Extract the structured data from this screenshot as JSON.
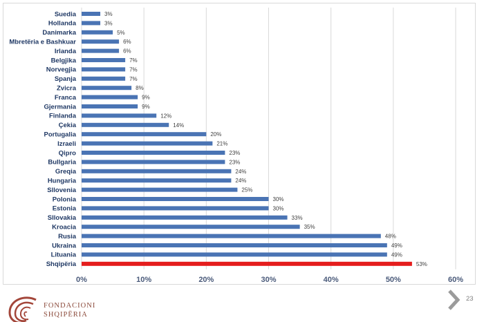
{
  "chart_data": {
    "type": "bar",
    "orientation": "horizontal",
    "categories": [
      "Suedia",
      "Hollanda",
      "Danimarka",
      "Mbretëria e Bashkuar",
      "Irlanda",
      "Belgjika",
      "Norvegjia",
      "Spanja",
      "Zvicra",
      "Franca",
      "Gjermania",
      "Finlanda",
      "Çekia",
      "Portugalia",
      "Izraeli",
      "Qipro",
      "Bullgaria",
      "Greqia",
      "Hungaria",
      "Sllovenia",
      "Polonia",
      "Estonia",
      "Sllovakia",
      "Kroacia",
      "Rusia",
      "Ukraina",
      "Lituania",
      "Shqipëria"
    ],
    "values": [
      3,
      3,
      5,
      6,
      6,
      7,
      7,
      7,
      8,
      9,
      9,
      12,
      14,
      20,
      21,
      23,
      23,
      24,
      24,
      25,
      30,
      30,
      33,
      35,
      48,
      49,
      49,
      53
    ],
    "value_labels": [
      "3%",
      "3%",
      "5%",
      "6%",
      "6%",
      "7%",
      "7%",
      "7%",
      "8%",
      "9%",
      "9%",
      "12%",
      "14%",
      "20%",
      "21%",
      "23%",
      "23%",
      "24%",
      "24%",
      "25%",
      "30%",
      "30%",
      "33%",
      "35%",
      "48%",
      "49%",
      "49%",
      "53%"
    ],
    "highlight_category": "Shqipëria",
    "xlim": [
      0,
      60
    ],
    "x_ticks": [
      "0%",
      "10%",
      "20%",
      "30%",
      "40%",
      "50%",
      "60%"
    ],
    "grid": true,
    "colors": {
      "bar": "#4a74b4",
      "highlight": "#e41c1c",
      "grid": "#d9d9d9"
    }
  },
  "footer": {
    "org_line1": "FONDACIONI",
    "org_line2": "SHQIPËRIA",
    "page_number": "23",
    "next_icon": "chevron-right-icon",
    "logo_color": "#a3463a"
  }
}
